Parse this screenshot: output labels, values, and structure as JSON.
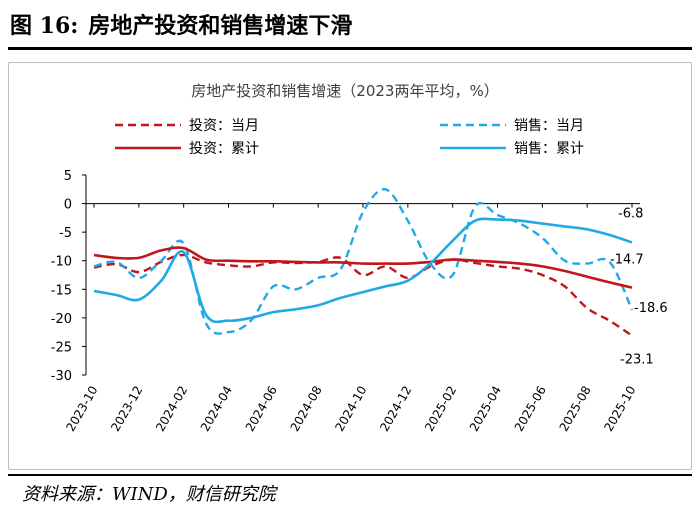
{
  "figure": {
    "number": "图 16:",
    "title": "房地产投资和销售增速下滑",
    "source": "资料来源：WIND，财信研究院"
  },
  "chart_data": {
    "type": "line",
    "title": "房地产投资和销售增速（2023两年平均，%）",
    "xlabel": "",
    "ylabel": "",
    "ylim": [
      -30,
      5
    ],
    "yticks": [
      5,
      0,
      -5,
      -10,
      -15,
      -20,
      -25,
      -30
    ],
    "x": [
      "2023-10",
      "2023-11",
      "2023-12",
      "2024-01",
      "2024-02",
      "2024-03",
      "2024-04",
      "2024-05",
      "2024-06",
      "2024-07",
      "2024-08",
      "2024-09",
      "2024-10",
      "2024-11",
      "2024-12",
      "2025-01",
      "2025-02",
      "2025-03",
      "2025-04",
      "2025-05",
      "2025-06",
      "2025-07",
      "2025-08",
      "2025-09",
      "2025-10"
    ],
    "xticks": [
      "2023-10",
      "2023-12",
      "2024-02",
      "2024-04",
      "2024-06",
      "2024-08",
      "2024-10",
      "2024-12",
      "2025-02",
      "2025-04",
      "2025-06",
      "2025-08",
      "2025-10"
    ],
    "series": [
      {
        "name": "投资：当月",
        "color": "#c0161c",
        "dash": true,
        "values": [
          -11.2,
          -10.6,
          -12.0,
          -10.2,
          -9.0,
          -10.3,
          -10.8,
          -11.0,
          -10.3,
          -10.4,
          -10.2,
          -9.5,
          -12.5,
          -11.0,
          -13.0,
          -11.0,
          -9.8,
          -10.4,
          -11.0,
          -11.4,
          -12.5,
          -14.5,
          -18.3,
          -20.5,
          -23.1
        ],
        "end_label": "-23.1"
      },
      {
        "name": "销售：当月",
        "color": "#22a9e3",
        "dash": true,
        "values": [
          -11.0,
          -10.2,
          -13.0,
          -10.0,
          -7.0,
          -21.0,
          -22.5,
          -20.5,
          -14.5,
          -15.0,
          -13.0,
          -11.5,
          -1.5,
          2.5,
          -3.0,
          -10.5,
          -12.5,
          -0.5,
          -2.0,
          -3.5,
          -6.0,
          -10.0,
          -10.5,
          -10.2,
          -18.6
        ],
        "end_label": "-18.6"
      },
      {
        "name": "投资：累计",
        "color": "#c0161c",
        "dash": false,
        "values": [
          -9.0,
          -9.5,
          -9.5,
          -8.2,
          -7.8,
          -9.8,
          -10.0,
          -10.1,
          -10.1,
          -10.2,
          -10.3,
          -10.3,
          -10.5,
          -10.5,
          -10.5,
          -10.2,
          -9.8,
          -10.0,
          -10.2,
          -10.5,
          -11.0,
          -11.8,
          -12.8,
          -13.8,
          -14.7
        ],
        "end_label": "-14.7"
      },
      {
        "name": "销售：累计",
        "color": "#22a9e3",
        "dash": false,
        "values": [
          -15.3,
          -16.0,
          -16.8,
          -13.5,
          -8.5,
          -19.5,
          -20.5,
          -20.0,
          -19.0,
          -18.5,
          -17.8,
          -16.5,
          -15.5,
          -14.5,
          -13.5,
          -10.5,
          -6.5,
          -3.0,
          -2.8,
          -3.0,
          -3.5,
          -4.0,
          -4.5,
          -5.5,
          -6.8
        ],
        "end_label": "-6.8"
      }
    ]
  }
}
